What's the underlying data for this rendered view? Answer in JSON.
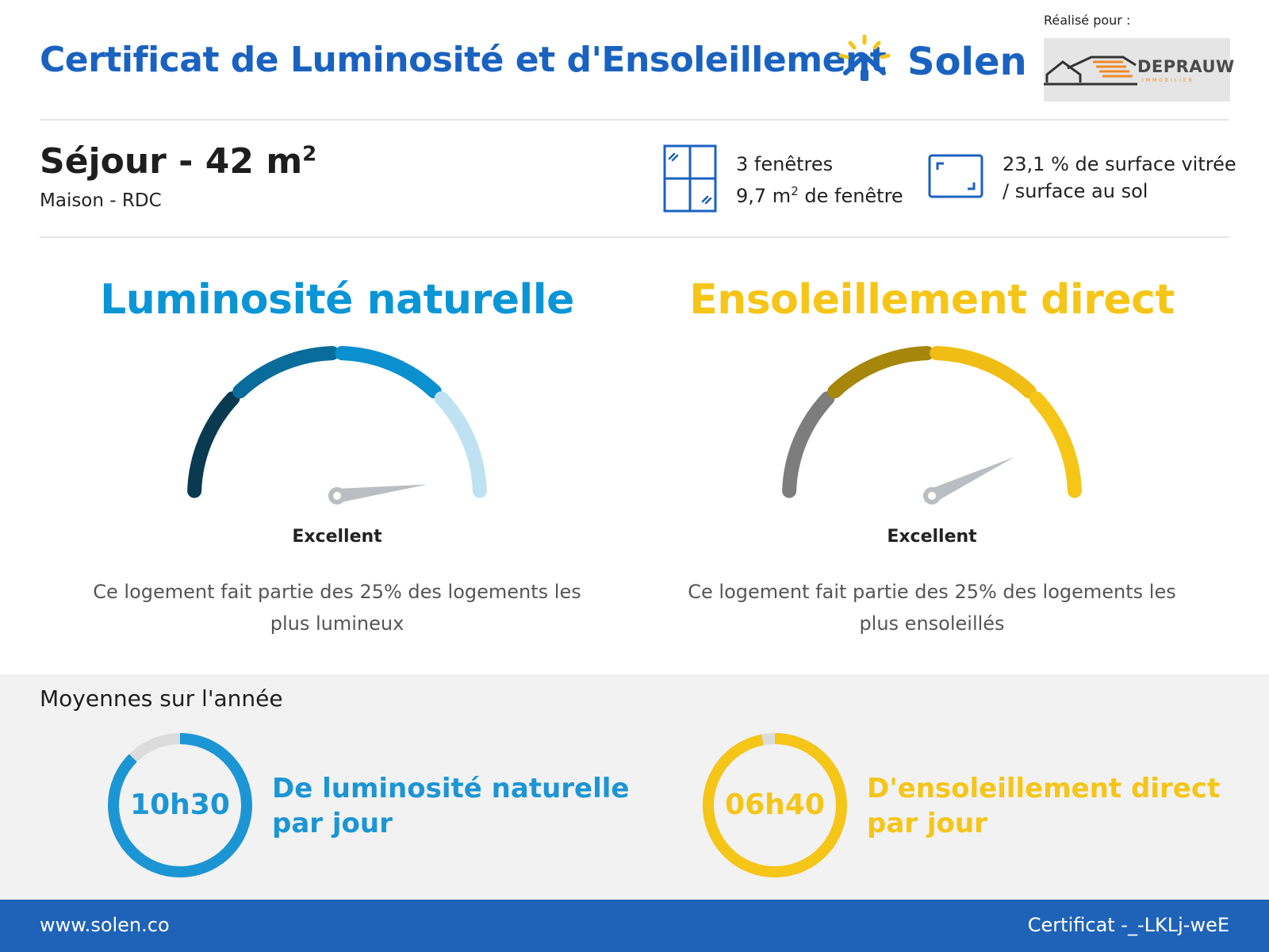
{
  "header": {
    "title": "Certificat de Luminosité et d'Ensoleillement",
    "brand_name": "Solen",
    "realise_pour": "Réalisé pour :",
    "client_logo_text": "DEPRAUW",
    "client_logo_sub": "IMMOBILIER"
  },
  "room": {
    "name": "Séjour - 42 m",
    "name_sup": "2",
    "location": "Maison - RDC",
    "windows_count": "3 fenêtres",
    "windows_area_value": "9,7 m",
    "windows_area_sup": "2",
    "windows_area_rest": " de fenêtre",
    "glazed_line1": "23,1 % de surface vitrée",
    "glazed_line2": "/ surface au sol"
  },
  "luminosite": {
    "title": "Luminosité naturelle",
    "rating": "Excellent",
    "description": "Ce logement fait partie des 25% des logements les plus lumineux",
    "color": "#0a95d6",
    "level": 0.96,
    "segment_colors": [
      "#0a3a52",
      "#0a6c9a",
      "#0a8fcf",
      "#bfe2f2"
    ]
  },
  "ensoleillement": {
    "title": "Ensoleillement direct",
    "rating": "Excellent",
    "description": "Ce logement fait partie des 25% des logements les plus ensoleillés",
    "color": "#f5c518",
    "level": 0.86,
    "segment_colors": [
      "#7d7d7d",
      "#a6860b",
      "#f0bd14",
      "#f5c518"
    ]
  },
  "averages": {
    "title": "Moyennes sur l'année",
    "lum_value": "10h30",
    "lum_label_1": "De luminosité naturelle",
    "lum_label_2": "par jour",
    "lum_fraction": 0.875,
    "sun_value": "06h40",
    "sun_label_1": "D'ensoleillement direct",
    "sun_label_2": "par jour",
    "sun_fraction": 0.97,
    "lum_color": "#1c95d4",
    "sun_color": "#f5c518"
  },
  "footer": {
    "website": "www.solen.co",
    "certificate": "Certificat -_-LKLj-weE"
  }
}
